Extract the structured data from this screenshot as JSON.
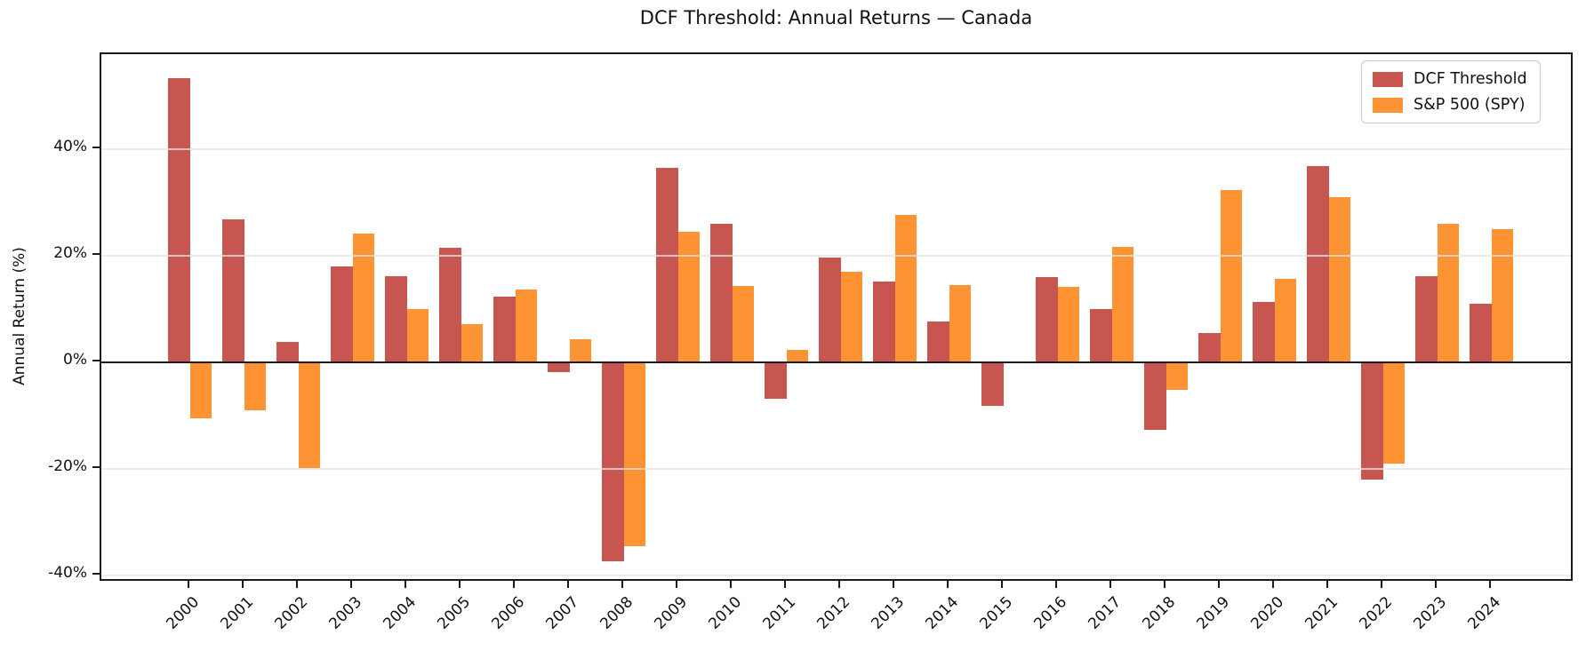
{
  "title": "DCF Threshold: Annual Returns — Canada",
  "chart_data": {
    "type": "bar",
    "title": "DCF Threshold: Annual Returns — Canada",
    "xlabel": "",
    "ylabel": "Annual Return (%)",
    "categories": [
      "2000",
      "2001",
      "2002",
      "2003",
      "2004",
      "2005",
      "2006",
      "2007",
      "2008",
      "2009",
      "2010",
      "2011",
      "2012",
      "2013",
      "2014",
      "2015",
      "2016",
      "2017",
      "2018",
      "2019",
      "2020",
      "2021",
      "2022",
      "2023",
      "2024"
    ],
    "series": [
      {
        "name": "DCF Threshold",
        "color": "#c6564f",
        "values": [
          53.2,
          26.8,
          3.8,
          18.0,
          16.1,
          21.4,
          12.3,
          -1.9,
          -37.2,
          36.4,
          25.9,
          -6.9,
          19.6,
          15.2,
          7.6,
          -8.1,
          15.9,
          10.0,
          -12.6,
          5.5,
          11.3,
          36.8,
          -21.9,
          16.1,
          10.9
        ]
      },
      {
        "name": "S&P 500 (SPY)",
        "color": "#fd9333",
        "values": [
          -10.4,
          -9.0,
          -19.8,
          24.1,
          10.0,
          7.1,
          13.6,
          4.3,
          -34.4,
          24.5,
          14.3,
          2.3,
          17.0,
          27.6,
          14.4,
          0.0,
          14.2,
          21.6,
          -5.2,
          32.2,
          15.6,
          31.0,
          -18.9,
          25.9,
          25.0
        ]
      }
    ],
    "yticks": [
      {
        "value": 40,
        "label": "40%"
      },
      {
        "value": 20,
        "label": "20%"
      },
      {
        "value": 0,
        "label": "0%"
      },
      {
        "value": -20,
        "label": "-20%"
      },
      {
        "value": -40,
        "label": "-40%"
      }
    ],
    "ylim": [
      -41.3,
      57.8
    ],
    "grid": "horizontal",
    "zero_line": true,
    "legend_position": "upper right",
    "bar_group": "paired"
  }
}
